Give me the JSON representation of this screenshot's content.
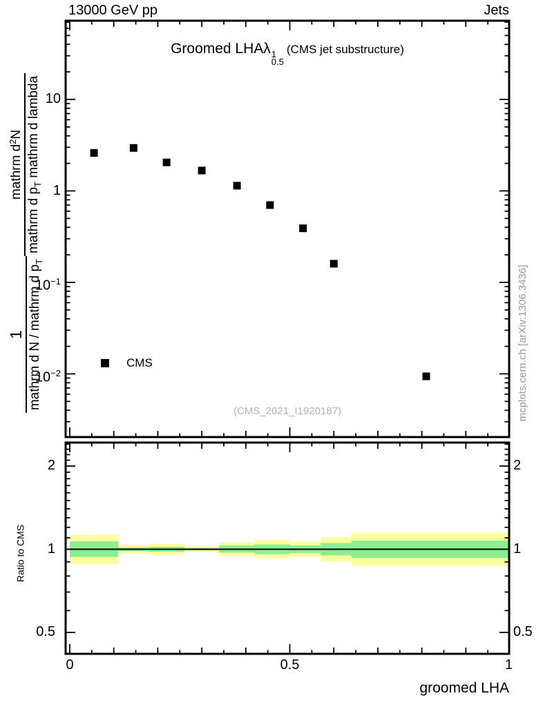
{
  "header": {
    "left": "13000 GeV pp",
    "right": "Jets"
  },
  "title": {
    "main": "Groomed LHA",
    "lambda": "λ",
    "sup": "1",
    "sub": "0.5",
    "suffix": "(CMS jet substructure)"
  },
  "watermark": "(CMS_2021_I1920187)",
  "side_note": "mcplots.cern.ch [arXiv:1306.3436]",
  "legend": {
    "label": "CMS"
  },
  "xlabel": "groomed LHA",
  "ratio_label": "Ratio to CMS",
  "ylabel": {
    "frac1_num": "1",
    "frac1_den_main": "mathrm d N / mathrm d p",
    "frac1_den_sub": "T",
    "frac2_num_a": "mathrm d",
    "frac2_num_sup": "2",
    "frac2_num_b": "N",
    "frac2_den_a": "mathrm d p",
    "frac2_den_sub": "T",
    "frac2_den_b": " mathrm d lambda"
  },
  "axes": {
    "x_ticks": [
      {
        "v": 0,
        "label": "0"
      },
      {
        "v": 0.5,
        "label": "0.5"
      },
      {
        "v": 1,
        "label": "1"
      }
    ],
    "y_ticks": [
      {
        "v": 10,
        "base": "10",
        "exp": ""
      },
      {
        "v": 1,
        "base": "1",
        "exp": ""
      },
      {
        "v": 0.1,
        "base": "10",
        "exp": "−1"
      },
      {
        "v": 0.01,
        "base": "10",
        "exp": "−2"
      }
    ],
    "ratio_ticks": [
      {
        "v": 2,
        "label": "2"
      },
      {
        "v": 1,
        "label": "1"
      },
      {
        "v": 0.5,
        "label": "0.5"
      }
    ]
  },
  "chart_data": {
    "type": "scatter",
    "title": "Groomed LHA lambda^1_0.5 (CMS jet substructure)",
    "xlabel": "groomed LHA",
    "ylabel": "1/(dN/dp_T) d^2N/(dp_T dlambda)",
    "x_range": [
      0,
      1
    ],
    "y_range": [
      0.002,
      70
    ],
    "y_scale": "log",
    "marker_color": "#000000",
    "series": [
      {
        "name": "CMS",
        "marker": "filled-square",
        "points": [
          {
            "x": 0.055,
            "y": 2.6
          },
          {
            "x": 0.145,
            "y": 2.95
          },
          {
            "x": 0.22,
            "y": 2.05
          },
          {
            "x": 0.3,
            "y": 1.67
          },
          {
            "x": 0.38,
            "y": 1.14
          },
          {
            "x": 0.455,
            "y": 0.7
          },
          {
            "x": 0.53,
            "y": 0.39
          },
          {
            "x": 0.6,
            "y": 0.16
          },
          {
            "x": 0.81,
            "y": 0.0094
          }
        ]
      }
    ],
    "ratio_panel": {
      "label": "Ratio to CMS",
      "y_scale": "log",
      "y_range": [
        0.42,
        2.43
      ],
      "reference_line": 1.0,
      "band_colors": {
        "yellow": "#ffff9e",
        "green": "#8af08f"
      },
      "bands": [
        {
          "x": [
            0.0,
            0.11
          ],
          "yellow": [
            0.884,
            1.125
          ],
          "green": [
            0.938,
            1.068
          ]
        },
        {
          "x": [
            0.11,
            0.18
          ],
          "yellow": [
            0.966,
            1.035
          ],
          "green": [
            0.986,
            1.014
          ]
        },
        {
          "x": [
            0.18,
            0.26
          ],
          "yellow": [
            0.955,
            1.047
          ],
          "green": [
            0.98,
            1.02
          ]
        },
        {
          "x": [
            0.26,
            0.34
          ],
          "yellow": [
            0.977,
            1.023
          ],
          "green": [
            0.991,
            1.009
          ]
        },
        {
          "x": [
            0.34,
            0.42
          ],
          "yellow": [
            0.947,
            1.056
          ],
          "green": [
            0.972,
            1.032
          ]
        },
        {
          "x": [
            0.42,
            0.5
          ],
          "yellow": [
            0.928,
            1.081
          ],
          "green": [
            0.96,
            1.041
          ]
        },
        {
          "x": [
            0.5,
            0.57
          ],
          "yellow": [
            0.939,
            1.065
          ],
          "green": [
            0.969,
            1.032
          ]
        },
        {
          "x": [
            0.57,
            0.64
          ],
          "yellow": [
            0.904,
            1.106
          ],
          "green": [
            0.95,
            1.053
          ]
        },
        {
          "x": [
            0.64,
            1.0
          ],
          "yellow": [
            0.871,
            1.148
          ],
          "green": [
            0.93,
            1.075
          ]
        }
      ]
    }
  }
}
